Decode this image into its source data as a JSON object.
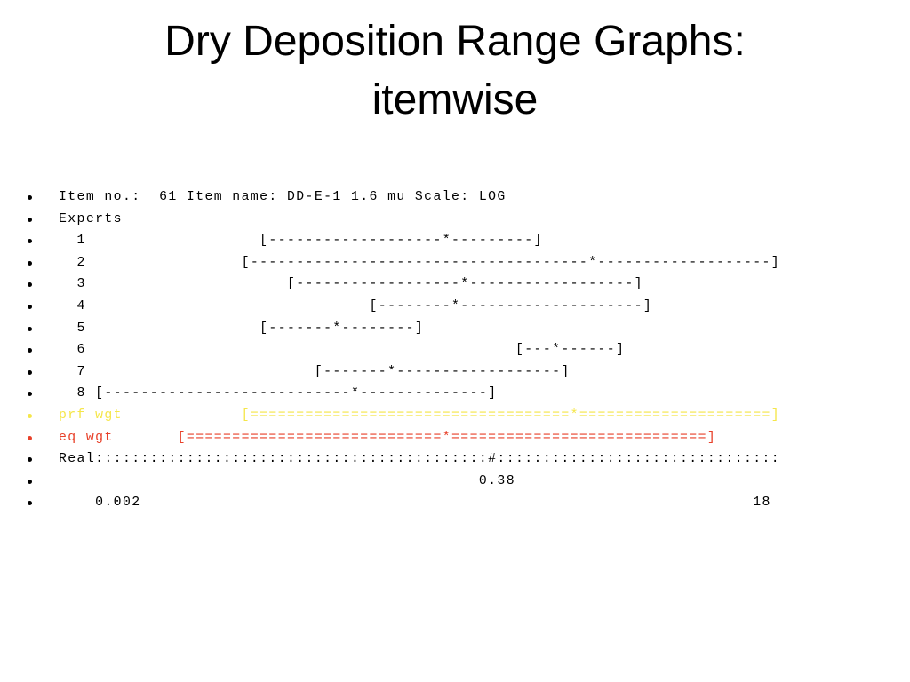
{
  "title": "Dry Deposition Range Graphs: itemwise",
  "lines": [
    {
      "text": "Item no.:  61 Item name: DD-E-1 1.6 mu Scale: LOG",
      "color": "#000000"
    },
    {
      "text": "Experts",
      "color": "#000000"
    },
    {
      "text": "  1                   [-------------------*---------]",
      "color": "#000000"
    },
    {
      "text": "  2                 [-------------------------------------*-------------------]",
      "color": "#000000"
    },
    {
      "text": "  3                      [------------------*------------------]",
      "color": "#000000"
    },
    {
      "text": "  4                               [--------*--------------------]",
      "color": "#000000"
    },
    {
      "text": "  5                   [-------*--------]",
      "color": "#000000"
    },
    {
      "text": "  6                                               [---*------]",
      "color": "#000000"
    },
    {
      "text": "  7                         [-------*------------------]",
      "color": "#000000"
    },
    {
      "text": "  8 [---------------------------*--------------]",
      "color": "#000000"
    },
    {
      "text": "prf wgt             [===================================*=====================]",
      "color": "#f5e64a"
    },
    {
      "text": "eq wgt       [============================*============================]",
      "color": "#e8412a"
    },
    {
      "text": "Real:::::::::::::::::::::::::::::::::::::::::::#:::::::::::::::::::::::::::::::",
      "color": "#000000"
    },
    {
      "text": "                                              0.38",
      "color": "#000000"
    },
    {
      "text": "    0.002                                                                   18",
      "color": "#000000"
    }
  ]
}
